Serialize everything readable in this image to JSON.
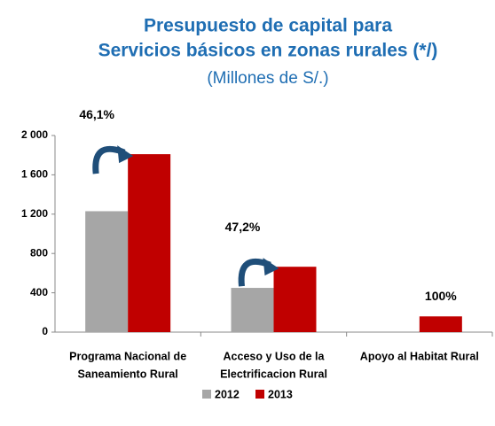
{
  "chart_data": {
    "type": "bar",
    "title": [
      "Presupuesto de capital para",
      "Servicios básicos en zonas rurales (*/)"
    ],
    "subtitle": "(Millones de S/.)",
    "categories": [
      [
        "Programa Nacional de",
        "Saneamiento Rural"
      ],
      [
        "Acceso y Uso de la",
        "Electrificacion Rural"
      ],
      [
        "Apoyo al Habitat Rural"
      ]
    ],
    "series": [
      {
        "name": "2012",
        "color": "#a6a6a6",
        "values": [
          1230,
          450,
          0
        ]
      },
      {
        "name": "2013",
        "color": "#c00000",
        "values": [
          1810,
          665,
          160
        ]
      }
    ],
    "annotations": [
      "46,1%",
      "47,2%",
      "100%"
    ],
    "ylim": [
      0,
      2000
    ],
    "yticks": [
      0,
      400,
      800,
      {
        "value": 1200,
        "label": "1 200"
      },
      {
        "value": 1600,
        "label": "1 600"
      },
      {
        "value": 2000,
        "label": "2 000"
      }
    ]
  }
}
